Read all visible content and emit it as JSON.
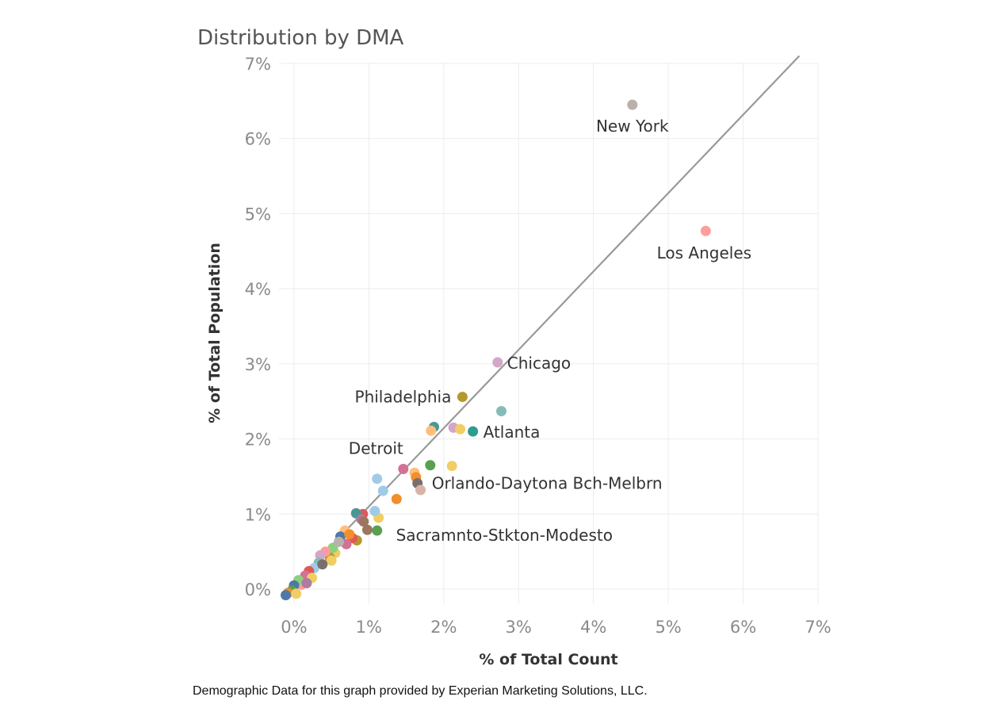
{
  "chart_data": {
    "type": "scatter",
    "title": "Distribution by DMA",
    "xlabel": "% of Total Count",
    "ylabel": "% of Total Population",
    "xlim": [
      -0.2,
      7
    ],
    "ylim": [
      -0.2,
      7
    ],
    "x_ticks": [
      "0%",
      "1%",
      "2%",
      "3%",
      "4%",
      "5%",
      "6%",
      "7%"
    ],
    "y_ticks": [
      "0%",
      "1%",
      "2%",
      "3%",
      "4%",
      "5%",
      "6%",
      "7%"
    ],
    "grid": true,
    "legend": "none",
    "reference_line": {
      "from": [
        -0.15,
        -0.1
      ],
      "to": [
        6.75,
        7.1
      ],
      "color": "#999999"
    },
    "points": [
      {
        "name": "New York",
        "label": "New York",
        "x": 4.52,
        "y": 6.45,
        "color": "#bab0ac"
      },
      {
        "name": "Los Angeles",
        "label": "Los Angeles",
        "x": 5.5,
        "y": 4.77,
        "color": "#ff9d9a"
      },
      {
        "name": "Chicago",
        "label": "Chicago",
        "x": 2.72,
        "y": 3.02,
        "color": "#d4a6c8"
      },
      {
        "name": "Philadelphia",
        "label": "Philadelphia",
        "x": 2.25,
        "y": 2.56,
        "color": "#b6992d"
      },
      {
        "name": "",
        "label": "",
        "x": 2.77,
        "y": 2.37,
        "color": "#86bcb6"
      },
      {
        "name": "Atlanta",
        "label": "Atlanta",
        "x": 2.39,
        "y": 2.1,
        "color": "#2a9d8f"
      },
      {
        "name": "",
        "label": "",
        "x": 1.87,
        "y": 2.16,
        "color": "#499894"
      },
      {
        "name": "",
        "label": "",
        "x": 1.83,
        "y": 2.11,
        "color": "#ffbe7d"
      },
      {
        "name": "",
        "label": "",
        "x": 2.13,
        "y": 2.15,
        "color": "#d4a6c8"
      },
      {
        "name": "",
        "label": "",
        "x": 2.22,
        "y": 2.13,
        "color": "#f1ce63"
      },
      {
        "name": "Detroit",
        "label": "Detroit",
        "x": 1.46,
        "y": 1.6,
        "color": "#d37295"
      },
      {
        "name": "",
        "label": "",
        "x": 1.82,
        "y": 1.65,
        "color": "#59a14f"
      },
      {
        "name": "",
        "label": "",
        "x": 2.11,
        "y": 1.64,
        "color": "#f1ce63"
      },
      {
        "name": "",
        "label": "",
        "x": 1.61,
        "y": 1.55,
        "color": "#ffbe7d"
      },
      {
        "name": "",
        "label": "",
        "x": 1.63,
        "y": 1.49,
        "color": "#f28e2b"
      },
      {
        "name": "",
        "label": "",
        "x": 1.11,
        "y": 1.47,
        "color": "#a0cbe8"
      },
      {
        "name": "Orlando-Daytona Bch-Melbrn",
        "label": "Orlando-Daytona Bch-Melbrn",
        "x": 1.65,
        "y": 1.41,
        "color": "#79706e"
      },
      {
        "name": "",
        "label": "",
        "x": 1.69,
        "y": 1.32,
        "color": "#d7b5a6"
      },
      {
        "name": "",
        "label": "",
        "x": 1.19,
        "y": 1.31,
        "color": "#a0cbe8"
      },
      {
        "name": "",
        "label": "",
        "x": 1.37,
        "y": 1.2,
        "color": "#f28e2b"
      },
      {
        "name": "Sacramnto-Stkton-Modesto",
        "label": "Sacramnto-Stkton-Modesto",
        "x": 1.13,
        "y": 0.95,
        "color": "#f1ce63"
      },
      {
        "name": "",
        "label": "",
        "x": 1.11,
        "y": 0.78,
        "color": "#59a14f"
      },
      {
        "name": "",
        "label": "",
        "x": 1.08,
        "y": 1.04,
        "color": "#a0cbe8"
      },
      {
        "name": "",
        "label": "",
        "x": 0.92,
        "y": 1.0,
        "color": "#e15759"
      },
      {
        "name": "",
        "label": "",
        "x": 0.83,
        "y": 1.01,
        "color": "#499894"
      },
      {
        "name": "",
        "label": "",
        "x": 0.9,
        "y": 0.93,
        "color": "#b07aa1"
      },
      {
        "name": "",
        "label": "",
        "x": 0.98,
        "y": 0.79,
        "color": "#9d7660"
      },
      {
        "name": "",
        "label": "",
        "x": 0.84,
        "y": 0.65,
        "color": "#b6992d"
      },
      {
        "name": "",
        "label": "",
        "x": 0.78,
        "y": 0.68,
        "color": "#e15759"
      },
      {
        "name": "",
        "label": "",
        "x": 0.68,
        "y": 0.78,
        "color": "#ffbe7d"
      },
      {
        "name": "",
        "label": "",
        "x": 0.62,
        "y": 0.7,
        "color": "#4e79a7"
      },
      {
        "name": "",
        "label": "",
        "x": 0.7,
        "y": 0.6,
        "color": "#d37295"
      },
      {
        "name": "",
        "label": "",
        "x": 0.55,
        "y": 0.48,
        "color": "#f1ce63"
      },
      {
        "name": "",
        "label": "",
        "x": 0.52,
        "y": 0.55,
        "color": "#8cd17d"
      },
      {
        "name": "",
        "label": "",
        "x": 0.48,
        "y": 0.42,
        "color": "#b6992d"
      },
      {
        "name": "",
        "label": "",
        "x": 0.42,
        "y": 0.5,
        "color": "#ff9d9a"
      },
      {
        "name": "",
        "label": "",
        "x": 0.35,
        "y": 0.45,
        "color": "#d4a6c8"
      },
      {
        "name": "",
        "label": "",
        "x": 0.33,
        "y": 0.35,
        "color": "#86bcb6"
      },
      {
        "name": "",
        "label": "",
        "x": 0.27,
        "y": 0.28,
        "color": "#a0cbe8"
      },
      {
        "name": "",
        "label": "",
        "x": 0.2,
        "y": 0.24,
        "color": "#e15759"
      },
      {
        "name": "",
        "label": "",
        "x": 0.15,
        "y": 0.18,
        "color": "#d37295"
      },
      {
        "name": "",
        "label": "",
        "x": 0.24,
        "y": 0.15,
        "color": "#f1ce63"
      },
      {
        "name": "",
        "label": "",
        "x": 0.1,
        "y": 0.06,
        "color": "#ff9d9a"
      },
      {
        "name": "",
        "label": "",
        "x": 0.06,
        "y": 0.12,
        "color": "#8cd17d"
      },
      {
        "name": "",
        "label": "",
        "x": 0.0,
        "y": 0.05,
        "color": "#4e79a7"
      },
      {
        "name": "",
        "label": "",
        "x": -0.03,
        "y": -0.02,
        "color": "#59a14f"
      },
      {
        "name": "",
        "label": "",
        "x": -0.08,
        "y": -0.05,
        "color": "#f28e2b"
      },
      {
        "name": "",
        "label": "",
        "x": -0.11,
        "y": -0.08,
        "color": "#4e79a7"
      },
      {
        "name": "",
        "label": "",
        "x": 0.03,
        "y": -0.06,
        "color": "#f1ce63"
      },
      {
        "name": "",
        "label": "",
        "x": 0.6,
        "y": 0.63,
        "color": "#bab0ac"
      },
      {
        "name": "",
        "label": "",
        "x": 0.5,
        "y": 0.38,
        "color": "#f1ce63"
      },
      {
        "name": "",
        "label": "",
        "x": 0.38,
        "y": 0.33,
        "color": "#79706e"
      },
      {
        "name": "",
        "label": "",
        "x": 0.93,
        "y": 0.9,
        "color": "#9d7660"
      },
      {
        "name": "",
        "label": "",
        "x": 0.74,
        "y": 0.73,
        "color": "#f28e2b"
      },
      {
        "name": "",
        "label": "",
        "x": 0.17,
        "y": 0.08,
        "color": "#b07aa1"
      }
    ]
  },
  "footnote": "Demographic Data for this graph provided by Experian Marketing Solutions, LLC."
}
